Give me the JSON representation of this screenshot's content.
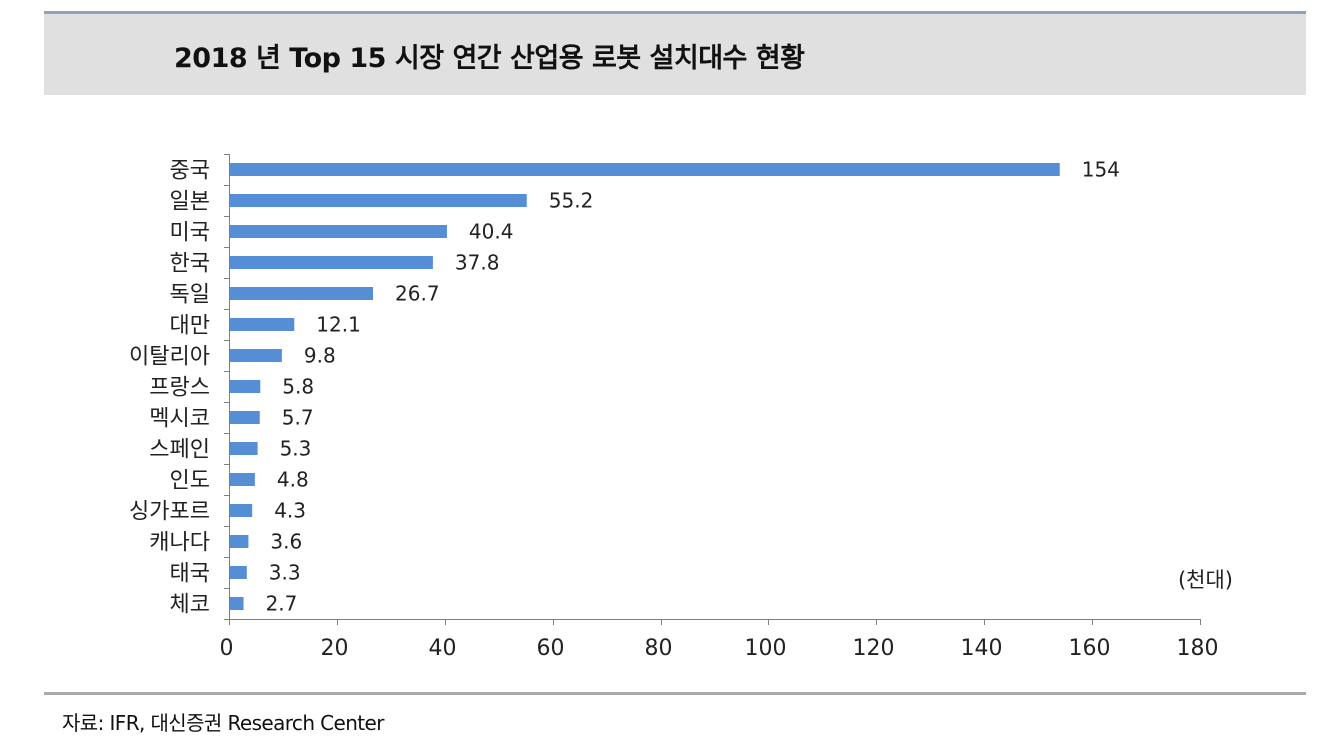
{
  "title": "2018 년 Top 15 시장 연간 산업용 로봇 설치대수 현황",
  "source": "자료: IFR, 대신증권 Research Center",
  "colors": {
    "bar": "#558ed5",
    "title_band": "#e0e0e0",
    "top_rule": "#8ea3b8",
    "axis": "#7f7f7f"
  },
  "chart_data": {
    "type": "bar",
    "orientation": "horizontal",
    "categories": [
      "중국",
      "일본",
      "미국",
      "한국",
      "독일",
      "대만",
      "이탈리아",
      "프랑스",
      "멕시코",
      "스페인",
      "인도",
      "싱가포르",
      "캐나다",
      "태국",
      "체코"
    ],
    "values": [
      154,
      55.2,
      40.4,
      37.8,
      26.7,
      12.1,
      9.8,
      5.8,
      5.7,
      5.3,
      4.8,
      4.3,
      3.6,
      3.3,
      2.7
    ],
    "value_labels": [
      "154",
      "55.2",
      "40.4",
      "37.8",
      "26.7",
      "12.1",
      "9.8",
      "5.8",
      "5.7",
      "5.3",
      "4.8",
      "4.3",
      "3.6",
      "3.3",
      "2.7"
    ],
    "xlim": [
      0,
      180
    ],
    "xticks": [
      0,
      20,
      40,
      60,
      80,
      100,
      120,
      140,
      160,
      180
    ],
    "xtick_labels": [
      "0",
      "20",
      "40",
      "60",
      "80",
      "100",
      "120",
      "140",
      "160",
      "180"
    ],
    "unit_label": "(천대)",
    "grid": false,
    "legend": "none"
  }
}
